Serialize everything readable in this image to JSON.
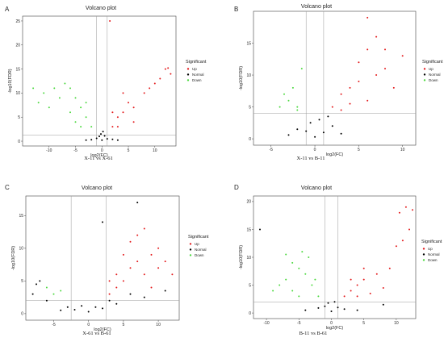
{
  "figure": {
    "panels": [
      {
        "letter": "A",
        "title": "Volcano plot",
        "xlabel": "log2(FC)",
        "ylabel": "-log10(FDR)",
        "caption": "X-11 vs X-61",
        "legend": {
          "title": "Significant",
          "items": [
            "Up",
            "Normal",
            "Down"
          ]
        }
      },
      {
        "letter": "B",
        "title": "Volcano plot",
        "xlabel": "log2(FC)",
        "ylabel": "-log10(FDR)",
        "caption": "X-11 vs B-11",
        "legend": {
          "title": "Significant",
          "items": [
            "Up",
            "Normal",
            "Down"
          ]
        }
      },
      {
        "letter": "C",
        "title": "Volcano plot",
        "xlabel": "log2(FC)",
        "ylabel": "-log10(FDR)",
        "caption": "X-61 vs B-61",
        "legend": {
          "title": "Significant",
          "items": [
            "Up",
            "Normal",
            "Down"
          ]
        }
      },
      {
        "letter": "D",
        "title": "Volcano plot",
        "xlabel": "log2(FC)",
        "ylabel": "-log10(FDR)",
        "caption": "B-11 vs B-61",
        "legend": {
          "title": "Significant",
          "items": [
            "Up",
            "Normal",
            "Down"
          ]
        }
      }
    ]
  },
  "chart_data": [
    {
      "type": "scatter",
      "title": "Volcano plot",
      "xlabel": "log2(FC)",
      "ylabel": "-log10(FDR)",
      "xlim": [
        -15,
        14
      ],
      "ylim": [
        -1,
        26
      ],
      "xticks": [
        -10,
        -5,
        0,
        5,
        10
      ],
      "yticks": [
        0,
        5,
        10,
        15,
        20,
        25
      ],
      "threshold_lines": {
        "x": [
          -1,
          1
        ],
        "y": 1.3
      },
      "grid": false,
      "legend_position": "right",
      "series": [
        {
          "name": "Up",
          "color": "#e41a1c",
          "points": [
            [
              2,
              3
            ],
            [
              3,
              5
            ],
            [
              4,
              6
            ],
            [
              5,
              8
            ],
            [
              6,
              4
            ],
            [
              8,
              10
            ],
            [
              10,
              12
            ],
            [
              12,
              15
            ],
            [
              13,
              14
            ],
            [
              4,
              10
            ],
            [
              3,
              3
            ],
            [
              2,
              6
            ],
            [
              6,
              7
            ],
            [
              9,
              11
            ],
            [
              11,
              13
            ],
            [
              12.5,
              15.2
            ],
            [
              1.5,
              25
            ]
          ]
        },
        {
          "name": "Normal",
          "color": "#000000",
          "points": [
            [
              0,
              0.2
            ],
            [
              -0.5,
              1
            ],
            [
              0.5,
              1.1
            ],
            [
              1,
              0.5
            ],
            [
              -1,
              0.6
            ],
            [
              -2,
              0.3
            ],
            [
              2,
              0.4
            ],
            [
              3,
              0.2
            ],
            [
              -3,
              0.2
            ],
            [
              0.2,
              2
            ],
            [
              -0.2,
              1.5
            ]
          ]
        },
        {
          "name": "Down",
          "color": "#4cd93f",
          "points": [
            [
              -2,
              3
            ],
            [
              -3,
              5
            ],
            [
              -4,
              7
            ],
            [
              -5,
              9
            ],
            [
              -6,
              11
            ],
            [
              -8,
              9
            ],
            [
              -10,
              7
            ],
            [
              -7,
              12
            ],
            [
              -5,
              4
            ],
            [
              -4,
              3
            ],
            [
              -9,
              11
            ],
            [
              -11,
              10
            ],
            [
              -12,
              8
            ],
            [
              -13,
              11
            ],
            [
              -6,
              6
            ],
            [
              -3,
              8
            ]
          ]
        }
      ]
    },
    {
      "type": "scatter",
      "title": "Volcano plot",
      "xlabel": "log2(FC)",
      "ylabel": "-log10(FDR)",
      "xlim": [
        -7,
        11.5
      ],
      "ylim": [
        -1,
        20
      ],
      "xticks": [
        -5,
        0,
        5,
        10
      ],
      "yticks": [
        0,
        5,
        10,
        15
      ],
      "threshold_lines": {
        "x": [
          -1,
          1
        ],
        "y": 4
      },
      "grid": false,
      "legend_position": "right",
      "series": [
        {
          "name": "Up",
          "color": "#e41a1c",
          "points": [
            [
              2,
              5
            ],
            [
              3,
              7
            ],
            [
              4,
              8
            ],
            [
              5,
              9
            ],
            [
              6,
              6
            ],
            [
              7,
              10
            ],
            [
              8,
              11
            ],
            [
              3,
              4.5
            ],
            [
              4,
              5.5
            ],
            [
              6,
              14
            ],
            [
              7,
              16
            ],
            [
              8,
              14
            ],
            [
              10,
              13
            ],
            [
              5,
              12
            ],
            [
              9,
              8
            ],
            [
              6,
              19
            ]
          ]
        },
        {
          "name": "Normal",
          "color": "#000000",
          "points": [
            [
              0,
              0.3
            ],
            [
              1,
              1
            ],
            [
              -1,
              1.2
            ],
            [
              2,
              2
            ],
            [
              -2,
              1.5
            ],
            [
              0.5,
              3
            ],
            [
              -0.5,
              2.5
            ],
            [
              3,
              0.8
            ],
            [
              -3,
              0.6
            ],
            [
              1.5,
              3.5
            ]
          ]
        },
        {
          "name": "Down",
          "color": "#4cd93f",
          "points": [
            [
              -2,
              5
            ],
            [
              -3,
              6
            ],
            [
              -4,
              5
            ],
            [
              -2.5,
              8
            ],
            [
              -1.5,
              11
            ],
            [
              -2,
              4.5
            ],
            [
              -3.5,
              7
            ]
          ]
        }
      ]
    },
    {
      "type": "scatter",
      "title": "Volcano plot",
      "xlabel": "log2(FC)",
      "ylabel": "-log10(FDR)",
      "xlim": [
        -9,
        13
      ],
      "ylim": [
        -1,
        18
      ],
      "xticks": [
        -5,
        0,
        5,
        10
      ],
      "yticks": [
        0,
        5,
        10,
        15
      ],
      "threshold_lines": {
        "x": [
          -2.5,
          2.5
        ],
        "y": 2
      },
      "grid": false,
      "legend_position": "right",
      "series": [
        {
          "name": "Up",
          "color": "#e41a1c",
          "points": [
            [
              3,
              3
            ],
            [
              4,
              4
            ],
            [
              5,
              5
            ],
            [
              6,
              7
            ],
            [
              7,
              8
            ],
            [
              8,
              6
            ],
            [
              9,
              9
            ],
            [
              10,
              10
            ],
            [
              11,
              8
            ],
            [
              12,
              6
            ],
            [
              4,
              6
            ],
            [
              6,
              11
            ],
            [
              7,
              12
            ],
            [
              8,
              13
            ],
            [
              5,
              9
            ],
            [
              10,
              7
            ],
            [
              3,
              5
            ],
            [
              9,
              4
            ]
          ]
        },
        {
          "name": "Normal",
          "color": "#000000",
          "points": [
            [
              0,
              0.3
            ],
            [
              1,
              1
            ],
            [
              -1,
              1.2
            ],
            [
              2,
              0.8
            ],
            [
              -2,
              0.6
            ],
            [
              3,
              2
            ],
            [
              -3,
              1
            ],
            [
              -4,
              0.5
            ],
            [
              4,
              1.5
            ],
            [
              6,
              3
            ],
            [
              7,
              17
            ],
            [
              -6,
              2
            ],
            [
              -8,
              3
            ],
            [
              -7,
              5
            ],
            [
              2,
              14
            ],
            [
              8,
              2.5
            ],
            [
              11,
              3.5
            ],
            [
              -7.5,
              4.5
            ]
          ]
        },
        {
          "name": "Down",
          "color": "#4cd93f",
          "points": [
            [
              -5,
              3
            ],
            [
              -6,
              4
            ],
            [
              -4,
              3.5
            ]
          ]
        }
      ]
    },
    {
      "type": "scatter",
      "title": "Volcano plot",
      "xlabel": "log2(FC)",
      "ylabel": "-log10(FDR)",
      "xlim": [
        -12,
        13
      ],
      "ylim": [
        -1,
        21
      ],
      "xticks": [
        -10,
        -5,
        0,
        5,
        10
      ],
      "yticks": [
        0,
        5,
        10,
        15,
        20
      ],
      "threshold_lines": {
        "x": [
          -1,
          1
        ],
        "y": 2
      },
      "grid": false,
      "legend_position": "right",
      "series": [
        {
          "name": "Up",
          "color": "#e41a1c",
          "points": [
            [
              2,
              3
            ],
            [
              3,
              4
            ],
            [
              4,
              5
            ],
            [
              5,
              6
            ],
            [
              6,
              3.5
            ],
            [
              7,
              7
            ],
            [
              8,
              4.5
            ],
            [
              9,
              8
            ],
            [
              10,
              12
            ],
            [
              11,
              13
            ],
            [
              10.5,
              18
            ],
            [
              11.5,
              19
            ],
            [
              12,
              15
            ],
            [
              12.5,
              18.5
            ],
            [
              3,
              6
            ],
            [
              5,
              8
            ],
            [
              4,
              3
            ]
          ]
        },
        {
          "name": "Normal",
          "color": "#000000",
          "points": [
            [
              0,
              0.3
            ],
            [
              1,
              1
            ],
            [
              -1,
              1.2
            ],
            [
              2,
              0.7
            ],
            [
              -2,
              0.9
            ],
            [
              0.5,
              2
            ],
            [
              -0.5,
              1.8
            ],
            [
              4,
              0.5
            ],
            [
              -4,
              0.5
            ],
            [
              -11,
              15
            ],
            [
              8,
              1.5
            ]
          ]
        },
        {
          "name": "Down",
          "color": "#4cd93f",
          "points": [
            [
              -2,
              3
            ],
            [
              -3,
              5
            ],
            [
              -4,
              7
            ],
            [
              -5,
              8
            ],
            [
              -6,
              9
            ],
            [
              -7,
              6
            ],
            [
              -8,
              5
            ],
            [
              -3.5,
              10
            ],
            [
              -4.5,
              11
            ],
            [
              -6,
              4
            ],
            [
              -7,
              10.5
            ],
            [
              -2.5,
              6
            ],
            [
              -5,
              3
            ],
            [
              -9,
              4
            ]
          ]
        }
      ]
    }
  ]
}
